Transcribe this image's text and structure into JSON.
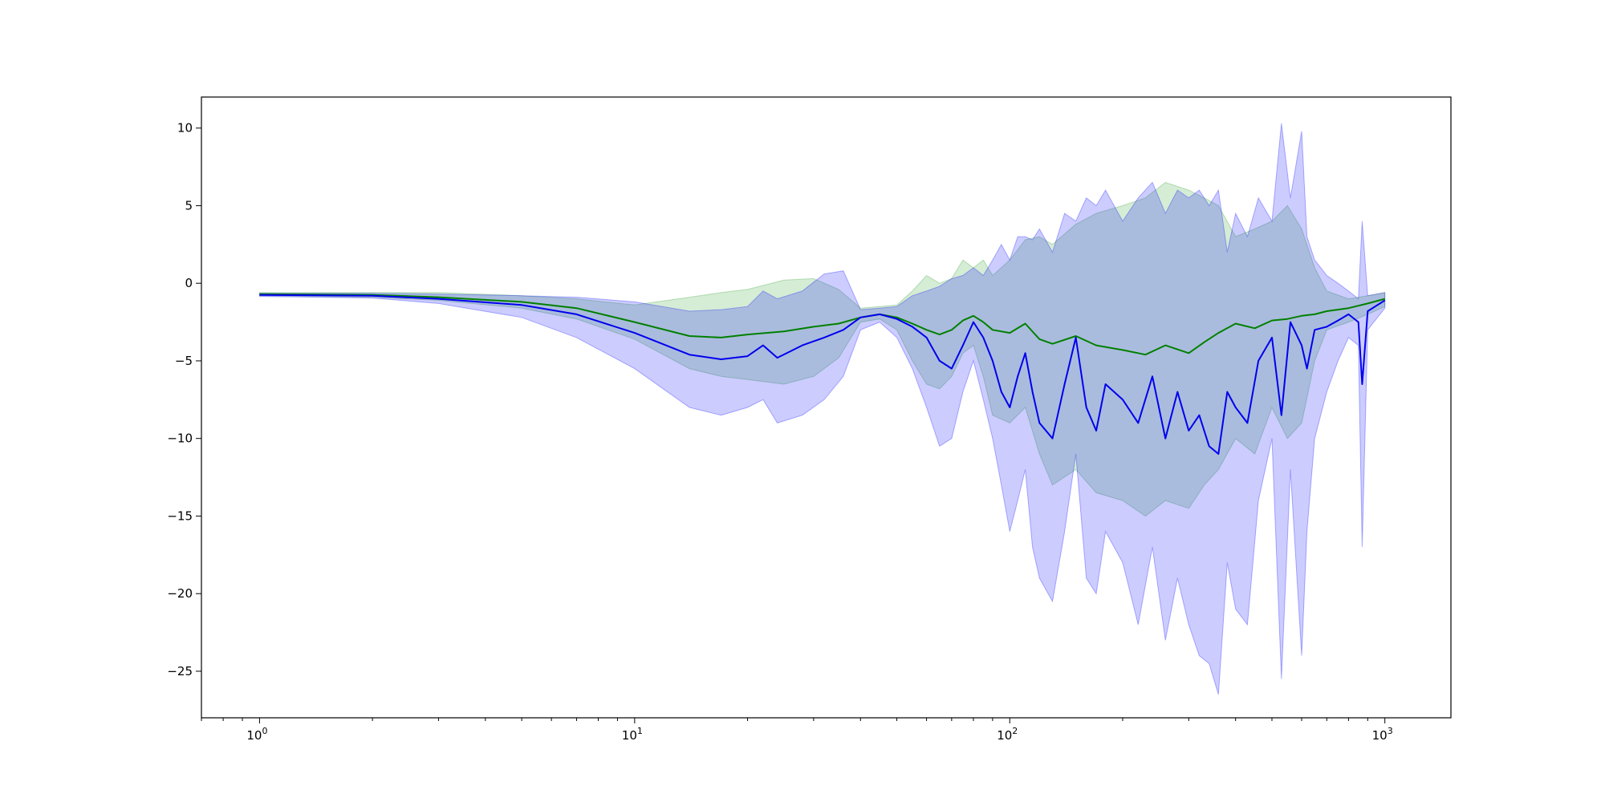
{
  "chart_data": {
    "type": "line",
    "title": "",
    "xlabel": "",
    "ylabel": "",
    "xscale": "log",
    "xlim": [
      0.7,
      1500
    ],
    "ylim": [
      -28,
      12
    ],
    "grid": false,
    "legend": "none",
    "x_ticks": [
      {
        "value": 1,
        "base": "10",
        "exp": "0"
      },
      {
        "value": 10,
        "base": "10",
        "exp": "1"
      },
      {
        "value": 100,
        "base": "10",
        "exp": "2"
      },
      {
        "value": 1000,
        "base": "10",
        "exp": "3"
      }
    ],
    "y_ticks": [
      {
        "value": 10,
        "label": "10"
      },
      {
        "value": 5,
        "label": "5"
      },
      {
        "value": 0,
        "label": "0"
      },
      {
        "value": -5,
        "label": "−5"
      },
      {
        "value": -10,
        "label": "−10"
      },
      {
        "value": -15,
        "label": "−15"
      },
      {
        "value": -20,
        "label": "−20"
      },
      {
        "value": -25,
        "label": "−25"
      }
    ],
    "series": [
      {
        "color": "#008000",
        "band_color": "#2ca02c",
        "x": [
          1,
          2,
          3,
          5,
          7,
          10,
          14,
          17,
          20,
          25,
          30,
          35,
          40,
          45,
          50,
          55,
          60,
          65,
          70,
          75,
          80,
          85,
          90,
          100,
          110,
          120,
          130,
          150,
          170,
          200,
          230,
          260,
          300,
          330,
          360,
          400,
          450,
          500,
          550,
          600,
          650,
          700,
          800,
          900,
          1000
        ],
        "mean": [
          -0.7,
          -0.75,
          -0.9,
          -1.2,
          -1.6,
          -2.5,
          -3.4,
          -3.5,
          -3.3,
          -3.1,
          -2.8,
          -2.6,
          -2.2,
          -2.0,
          -2.2,
          -2.6,
          -3.0,
          -3.3,
          -3.0,
          -2.4,
          -2.1,
          -2.5,
          -3.0,
          -3.2,
          -2.6,
          -3.6,
          -3.9,
          -3.4,
          -4.0,
          -4.3,
          -4.6,
          -4.0,
          -4.5,
          -3.8,
          -3.2,
          -2.6,
          -2.9,
          -2.4,
          -2.3,
          -2.1,
          -2.0,
          -1.8,
          -1.6,
          -1.3,
          -1.0
        ],
        "lower": [
          -0.8,
          -0.9,
          -1.1,
          -1.6,
          -2.3,
          -3.6,
          -5.5,
          -6.0,
          -6.2,
          -6.5,
          -6.0,
          -4.8,
          -2.5,
          -2.3,
          -3.0,
          -5.0,
          -6.5,
          -6.8,
          -6.0,
          -4.5,
          -4.0,
          -6.0,
          -8.5,
          -9.0,
          -8.0,
          -11.0,
          -13.0,
          -12.0,
          -13.5,
          -14.0,
          -15.0,
          -14.0,
          -14.5,
          -13.0,
          -12.0,
          -10.0,
          -11.0,
          -8.0,
          -10.0,
          -9.0,
          -5.0,
          -3.0,
          -2.5,
          -2.0,
          -1.5
        ],
        "upper": [
          -0.6,
          -0.6,
          -0.6,
          -0.8,
          -1.0,
          -1.4,
          -0.9,
          -0.6,
          -0.4,
          0.2,
          0.3,
          -0.4,
          -1.6,
          -1.5,
          -1.4,
          -0.5,
          0.5,
          0.0,
          0.3,
          1.5,
          1.0,
          1.5,
          0.5,
          1.5,
          2.8,
          3.0,
          2.5,
          3.8,
          4.5,
          5.0,
          5.5,
          6.5,
          6.0,
          5.5,
          5.0,
          3.0,
          3.5,
          4.0,
          5.0,
          3.5,
          1.0,
          -0.5,
          -1.0,
          -0.8,
          -0.6
        ]
      },
      {
        "color": "#0000ee",
        "band_color": "#0000ff",
        "x": [
          1,
          2,
          3,
          5,
          7,
          10,
          14,
          17,
          20,
          22,
          24,
          28,
          32,
          36,
          40,
          45,
          50,
          55,
          60,
          65,
          70,
          75,
          80,
          85,
          90,
          95,
          100,
          105,
          110,
          115,
          120,
          130,
          140,
          150,
          160,
          170,
          180,
          200,
          220,
          240,
          260,
          280,
          300,
          320,
          340,
          360,
          380,
          400,
          430,
          460,
          500,
          530,
          560,
          600,
          620,
          650,
          700,
          750,
          800,
          850,
          870,
          900,
          1000
        ],
        "mean": [
          -0.75,
          -0.8,
          -1.0,
          -1.4,
          -2.0,
          -3.2,
          -4.6,
          -4.9,
          -4.7,
          -4.0,
          -4.8,
          -4.0,
          -3.5,
          -3.0,
          -2.2,
          -2.0,
          -2.3,
          -2.8,
          -3.5,
          -5.0,
          -5.5,
          -4.0,
          -2.5,
          -3.5,
          -5.0,
          -7.0,
          -8.0,
          -6.0,
          -4.5,
          -7.0,
          -9.0,
          -10.0,
          -6.5,
          -3.5,
          -8.0,
          -9.5,
          -6.5,
          -7.5,
          -9.0,
          -6.0,
          -10.0,
          -7.0,
          -9.5,
          -8.5,
          -10.5,
          -11.0,
          -7.0,
          -8.0,
          -9.0,
          -5.0,
          -3.5,
          -8.5,
          -2.5,
          -4.0,
          -5.5,
          -3.0,
          -2.8,
          -2.4,
          -2.0,
          -2.5,
          -6.5,
          -1.8,
          -1.1
        ],
        "lower": [
          -0.85,
          -0.95,
          -1.3,
          -2.2,
          -3.5,
          -5.5,
          -8.0,
          -8.5,
          -8.0,
          -7.5,
          -9.0,
          -8.5,
          -7.5,
          -6.0,
          -3.0,
          -2.5,
          -3.5,
          -5.5,
          -8.0,
          -10.5,
          -10.0,
          -7.0,
          -5.0,
          -7.5,
          -10.0,
          -13.0,
          -16.0,
          -14.0,
          -12.0,
          -17.0,
          -19.0,
          -20.5,
          -16.0,
          -11.0,
          -19.0,
          -20.0,
          -16.0,
          -18.0,
          -22.0,
          -17.0,
          -23.0,
          -19.0,
          -22.0,
          -24.0,
          -24.5,
          -26.5,
          -18.0,
          -21.0,
          -22.0,
          -14.0,
          -10.0,
          -25.5,
          -12.0,
          -24.0,
          -16.0,
          -10.0,
          -7.0,
          -5.0,
          -3.5,
          -4.0,
          -17.0,
          -3.0,
          -1.6
        ],
        "upper": [
          -0.65,
          -0.65,
          -0.7,
          -0.8,
          -0.9,
          -1.2,
          -1.8,
          -1.7,
          -1.5,
          -0.5,
          -1.0,
          -0.5,
          0.6,
          0.8,
          -1.7,
          -1.6,
          -1.5,
          -0.8,
          -0.5,
          -0.2,
          0.3,
          0.5,
          1.0,
          0.5,
          1.5,
          2.5,
          1.5,
          3.0,
          3.0,
          2.8,
          3.5,
          2.0,
          4.5,
          4.0,
          5.5,
          5.0,
          6.0,
          4.0,
          5.5,
          6.5,
          4.5,
          6.0,
          5.5,
          6.0,
          5.0,
          6.0,
          2.0,
          4.5,
          3.0,
          5.5,
          4.0,
          10.3,
          5.5,
          9.8,
          3.0,
          1.5,
          0.5,
          0.0,
          -0.5,
          -1.0,
          4.0,
          -0.8,
          -0.6
        ]
      }
    ]
  }
}
